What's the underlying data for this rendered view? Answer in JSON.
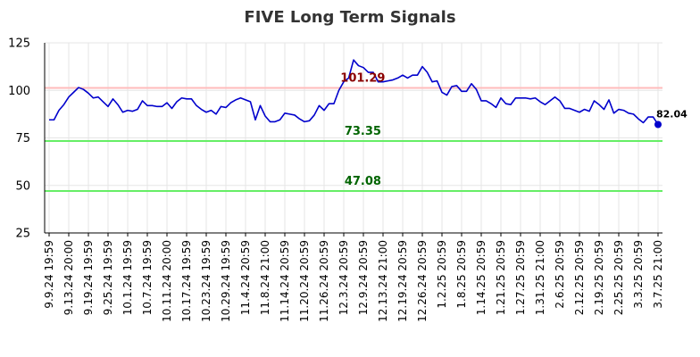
{
  "chart_data": {
    "type": "line",
    "title": "FIVE Long Term Signals",
    "xlabel": "",
    "ylabel": "",
    "ylim": [
      25,
      125
    ],
    "yticks": [
      25,
      50,
      75,
      100,
      125
    ],
    "grid": true,
    "x_tick_labels": [
      "9.9.24 19:59",
      "9.13.24 20:00",
      "9.19.24 19:59",
      "9.25.24 19:59",
      "10.1.24 19:59",
      "10.7.24 19:59",
      "10.11.24 20:00",
      "10.17.24 19:59",
      "10.23.24 19:59",
      "10.29.24 19:59",
      "11.4.24 20:59",
      "11.8.24 21:00",
      "11.14.24 20:59",
      "11.20.24 20:59",
      "11.26.24 20:59",
      "12.3.24 20:59",
      "12.9.24 20:59",
      "12.13.24 21:00",
      "12.19.24 20:59",
      "12.26.24 20:59",
      "1.2.25 20:59",
      "1.8.25 20:59",
      "1.14.25 20:59",
      "1.21.25 20:59",
      "1.27.25 20:59",
      "1.31.25 21:00",
      "2.6.25 20:59",
      "2.12.25 20:59",
      "2.19.25 20:59",
      "2.25.25 20:59",
      "3.3.25 20:59",
      "3.7.25 21:00"
    ],
    "series": [
      {
        "color": "#0000cc",
        "values": [
          84.5,
          84.5,
          89.5,
          92.5,
          96.5,
          99,
          101.5,
          100.5,
          98.5,
          96,
          96.5,
          94,
          91.5,
          95.5,
          92.5,
          88.5,
          89.5,
          89,
          90,
          94.5,
          92,
          92,
          91.5,
          91.5,
          93.5,
          90.5,
          94,
          96,
          95.5,
          95.5,
          92,
          90,
          88.5,
          89.5,
          87.5,
          91.5,
          91,
          93.5,
          95,
          96,
          95,
          94,
          84.5,
          92,
          86.5,
          83.5,
          83.5,
          84.5,
          88,
          87.5,
          87,
          85,
          83.5,
          84,
          87,
          92,
          89.5,
          93,
          93,
          100,
          104.5,
          106.5,
          116,
          113,
          112,
          109.5,
          109.5,
          104.5,
          104.5,
          105,
          105.5,
          106.5,
          108,
          106.5,
          108,
          108,
          112.5,
          109.5,
          104.5,
          105,
          99,
          97.5,
          102,
          102.5,
          99.5,
          99.5,
          103.5,
          100.5,
          94.5,
          94.5,
          93,
          91,
          96,
          93,
          92.5,
          96,
          96,
          96,
          95.5,
          96,
          94,
          92.5,
          94.5,
          96.5,
          94.5,
          90.5,
          90.5,
          89.5,
          88.5,
          90,
          89,
          94.5,
          92.5,
          90,
          95,
          88,
          90,
          89.5,
          88,
          87.5,
          85,
          83,
          86,
          86,
          82.04
        ]
      }
    ],
    "levels": [
      {
        "value": 101.29,
        "label": "101.29",
        "line_color": "#ffbbbb",
        "label_color": "#8b0000"
      },
      {
        "value": 73.35,
        "label": "73.35",
        "line_color": "#66ee66",
        "label_color": "#006400"
      },
      {
        "value": 47.08,
        "label": "47.08",
        "line_color": "#66ee66",
        "label_color": "#006400"
      }
    ],
    "last_value_label": "82.04",
    "last_point_color": "#0000cc"
  }
}
